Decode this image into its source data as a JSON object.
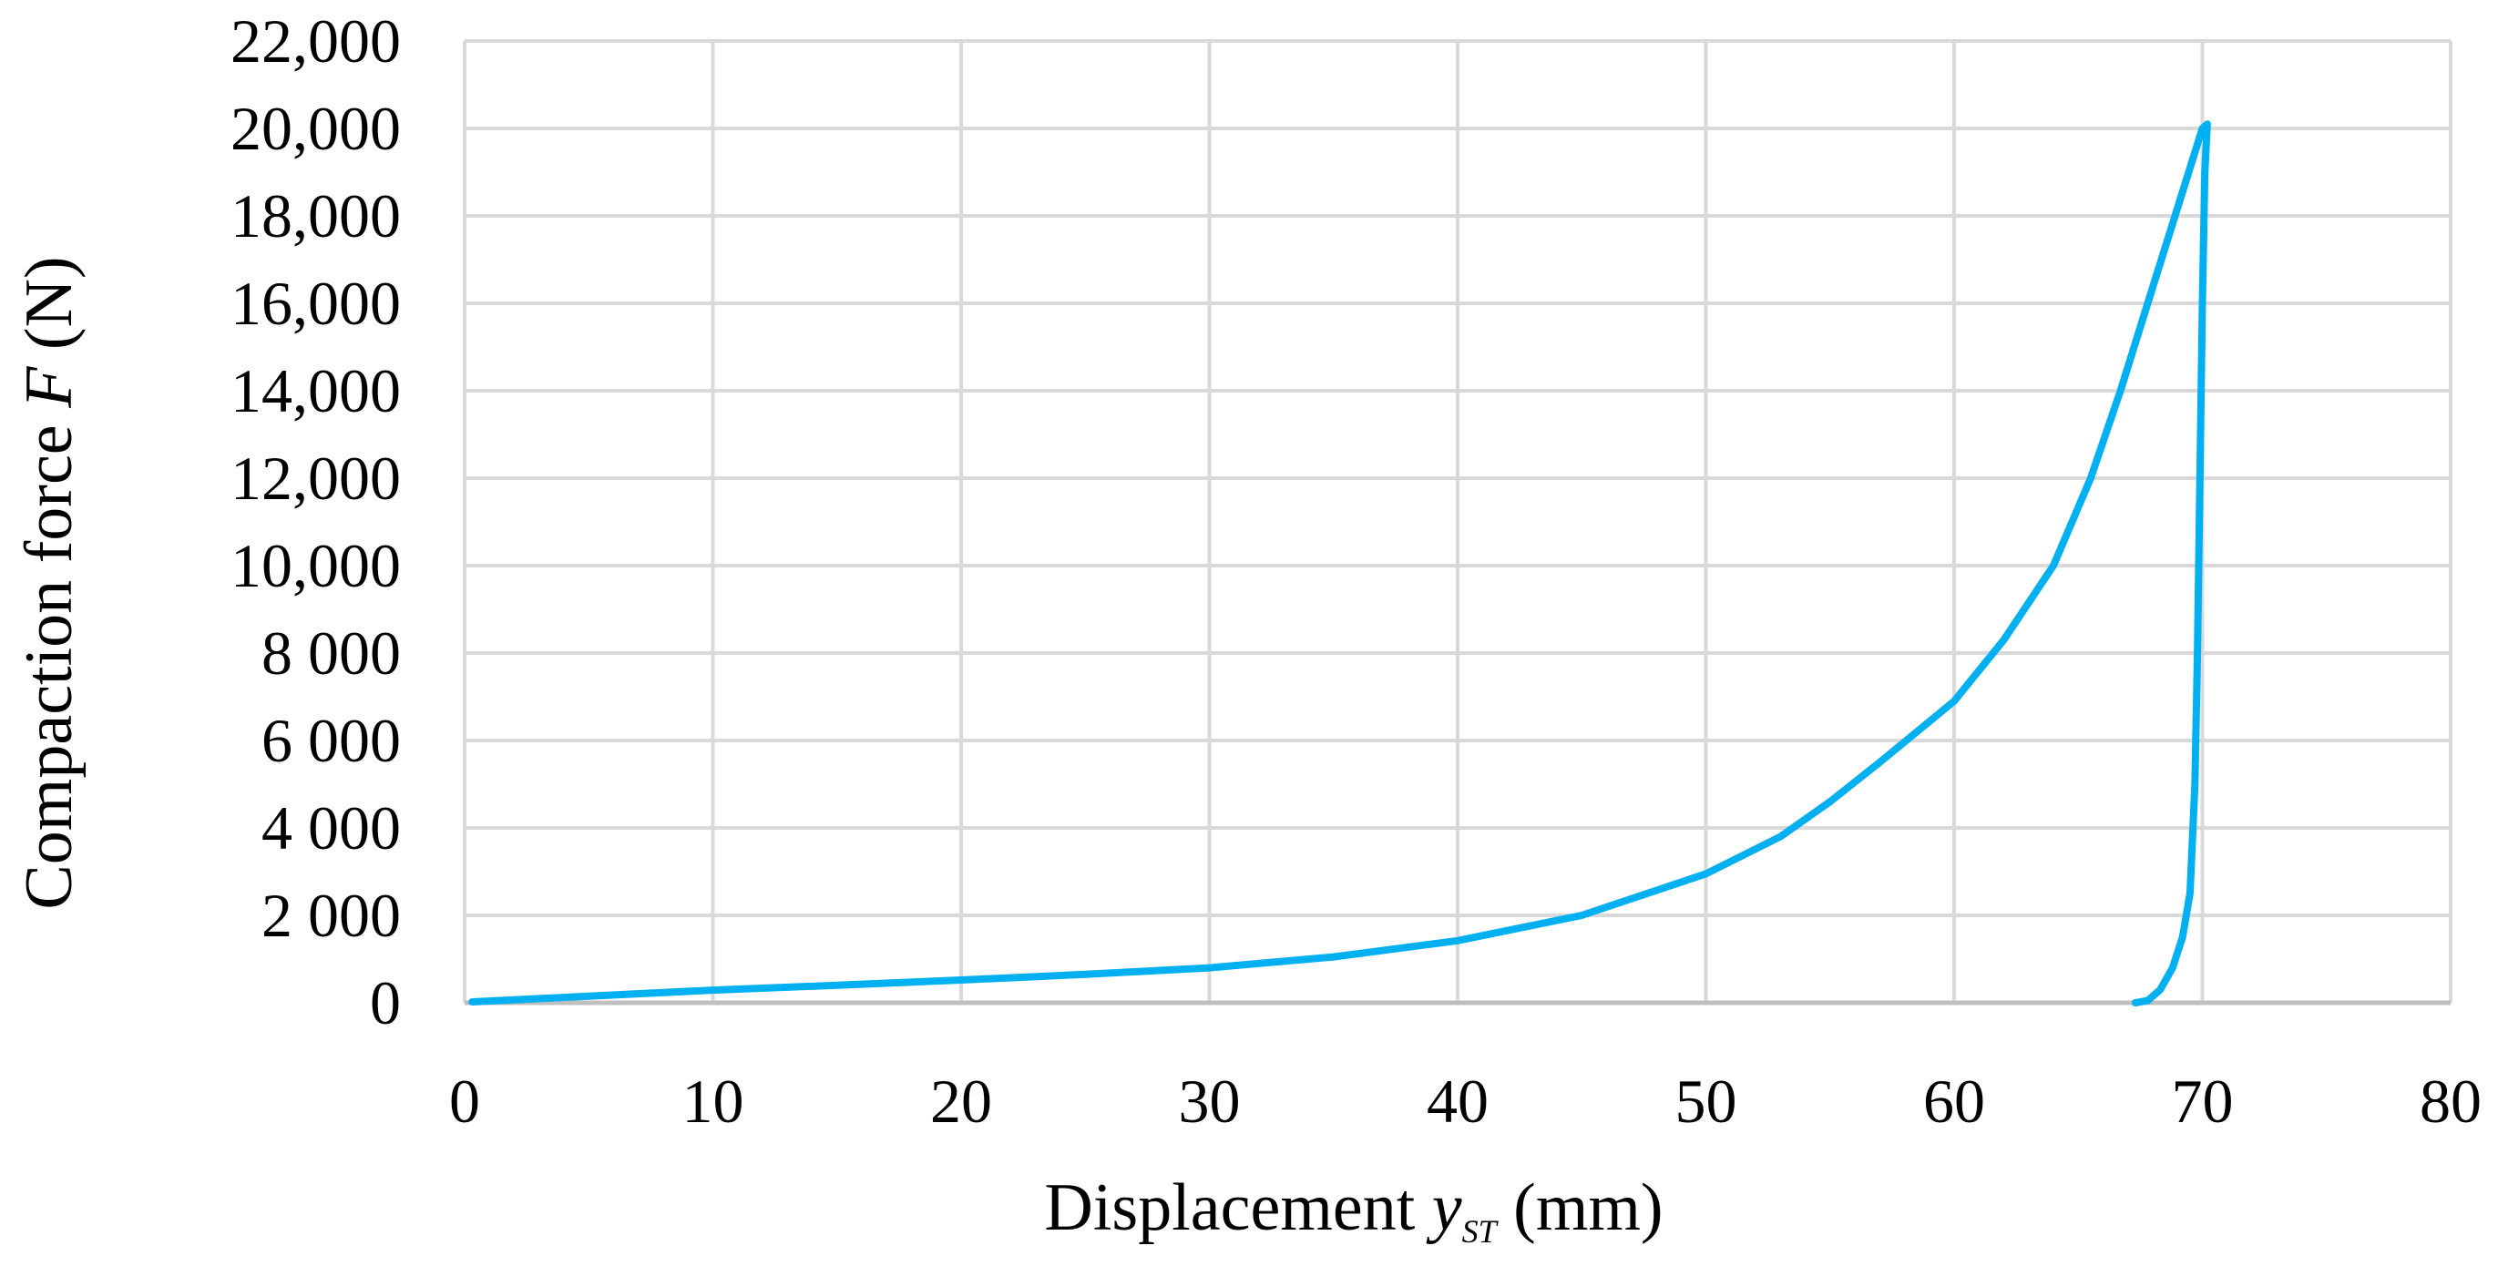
{
  "chart_data": {
    "type": "line",
    "xlabel": {
      "prefix": "Displacement ",
      "symbol": "y",
      "subscript": "ST",
      "suffix": " (mm)"
    },
    "ylabel": {
      "prefix": "Compaction force ",
      "symbol": "F",
      "suffix": " (N)"
    },
    "xlim": [
      0,
      80
    ],
    "ylim": [
      0,
      22000
    ],
    "x_ticks": [
      0,
      10,
      20,
      30,
      40,
      50,
      60,
      70,
      80
    ],
    "x_tick_labels": [
      "0",
      "10",
      "20",
      "30",
      "40",
      "50",
      "60",
      "70",
      "80"
    ],
    "y_ticks": [
      0,
      2000,
      4000,
      6000,
      8000,
      10000,
      12000,
      14000,
      16000,
      18000,
      20000,
      22000
    ],
    "y_tick_labels": [
      "0",
      "2 000",
      "4 000",
      "6 000",
      "8 000",
      "10,000",
      "12,000",
      "14,000",
      "16,000",
      "18,000",
      "20,000",
      "22,000"
    ],
    "grid": true,
    "legend": "none",
    "series": [
      {
        "color": "#00b0f0",
        "points": [
          [
            0.3,
            20
          ],
          [
            5,
            150
          ],
          [
            10,
            290
          ],
          [
            15,
            400
          ],
          [
            20,
            520
          ],
          [
            25,
            650
          ],
          [
            30,
            800
          ],
          [
            35,
            1050
          ],
          [
            40,
            1420
          ],
          [
            45,
            2000
          ],
          [
            50,
            2950
          ],
          [
            53,
            3800
          ],
          [
            55,
            4600
          ],
          [
            57,
            5500
          ],
          [
            60,
            6900
          ],
          [
            62,
            8300
          ],
          [
            64,
            10000
          ],
          [
            65.5,
            12000
          ],
          [
            66.7,
            14000
          ],
          [
            67.8,
            16000
          ],
          [
            68.9,
            18000
          ],
          [
            70.0,
            20000
          ],
          [
            70.2,
            20100
          ],
          [
            70.1,
            19000
          ],
          [
            70.0,
            16000
          ],
          [
            69.9,
            12000
          ],
          [
            69.8,
            8000
          ],
          [
            69.7,
            5000
          ],
          [
            69.5,
            2500
          ],
          [
            69.2,
            1500
          ],
          [
            68.8,
            800
          ],
          [
            68.3,
            300
          ],
          [
            67.8,
            50
          ],
          [
            67.3,
            0
          ]
        ]
      }
    ]
  }
}
